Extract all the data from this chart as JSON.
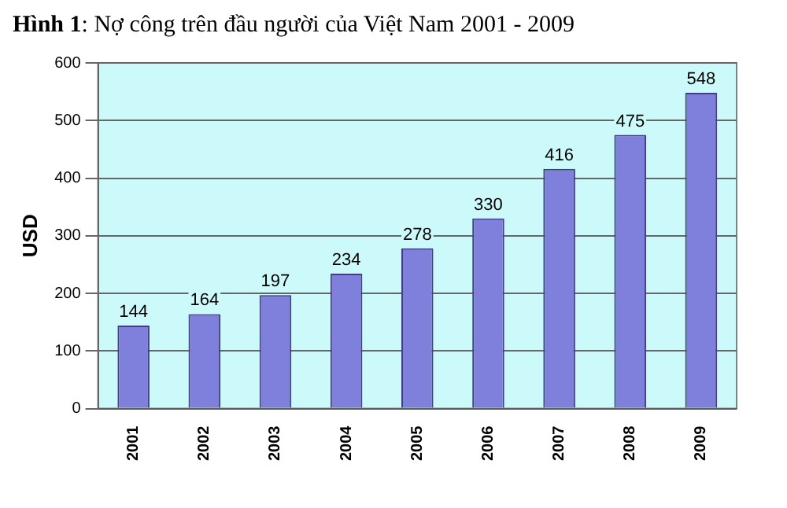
{
  "chart_data": {
    "type": "bar",
    "title": "Hình 1: Nợ công trên đầu người của Việt Nam 2001 - 2009",
    "ylabel": "USD",
    "categories": [
      "2001",
      "2002",
      "2003",
      "2004",
      "2005",
      "2006",
      "2007",
      "2008",
      "2009"
    ],
    "values": [
      144,
      164,
      197,
      234,
      278,
      330,
      416,
      475,
      548
    ],
    "color": "#7f7fdc",
    "ylim": [
      0,
      600
    ],
    "yticks": [
      0,
      100,
      200,
      300,
      400,
      500,
      600
    ],
    "grid": "y",
    "data_labels": true,
    "legend": false
  }
}
